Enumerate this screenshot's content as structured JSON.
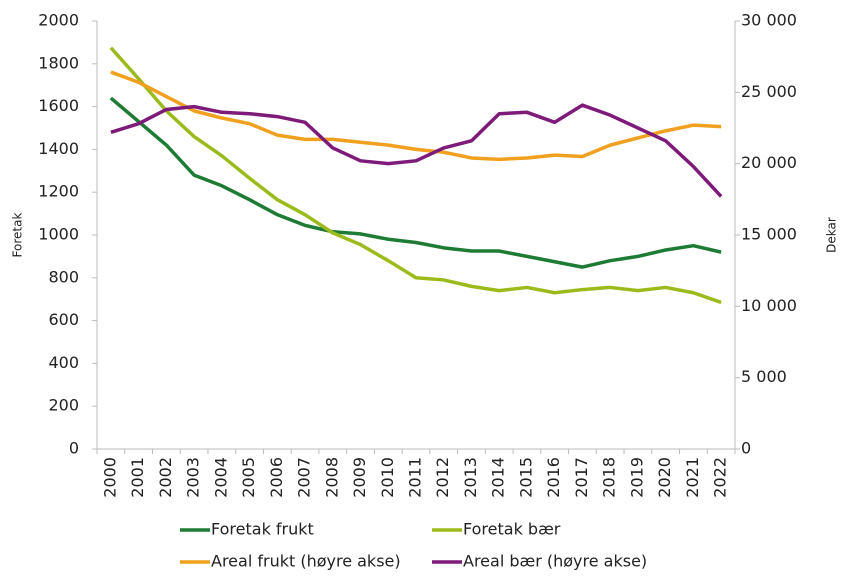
{
  "chart_data": {
    "type": "line",
    "categories": [
      "2000",
      "2001",
      "2002",
      "2003",
      "2004",
      "2005",
      "2006",
      "2007",
      "2008",
      "2009",
      "2010",
      "2011",
      "2012",
      "2013",
      "2014",
      "2015",
      "2016",
      "2017",
      "2018",
      "2019",
      "2020",
      "2021",
      "2022"
    ],
    "ylabel": "Foretak",
    "y2label": "Dekar",
    "ylim": [
      0,
      2000
    ],
    "yticks": [
      0,
      200,
      400,
      600,
      800,
      1000,
      1200,
      1400,
      1600,
      1800,
      2000
    ],
    "y2lim": [
      0,
      30000
    ],
    "y2ticks": [
      0,
      {
        "value": 5000,
        "label": "5 000"
      },
      {
        "value": 10000,
        "label": "10 000"
      },
      {
        "value": 15000,
        "label": "15 000"
      },
      {
        "value": 20000,
        "label": "20 000"
      },
      {
        "value": 25000,
        "label": "25 000"
      },
      {
        "value": 30000,
        "label": "30 000"
      }
    ],
    "grid": false,
    "legend": "bottom",
    "series": [
      {
        "name": "Foretak frukt",
        "color": "#1e7b34",
        "values": [
          1640,
          1530,
          1420,
          1280,
          1230,
          1165,
          1095,
          1045,
          1015,
          1005,
          980,
          965,
          940,
          925,
          925,
          900,
          875,
          850,
          880,
          900,
          930,
          950,
          920
        ]
      },
      {
        "name": "Foretak bær",
        "color": "#9bbb1c",
        "values": [
          1875,
          1730,
          1580,
          1460,
          1370,
          1265,
          1165,
          1095,
          1010,
          955,
          880,
          800,
          790,
          760,
          740,
          755,
          730,
          745,
          755,
          740,
          755,
          730,
          685
        ]
      },
      {
        "name": "Areal frukt (høyre akse)",
        "color": "#f0a01e",
        "axis": "y2",
        "values": [
          26420,
          25700,
          24700,
          23700,
          23200,
          22800,
          22000,
          21700,
          21700,
          21500,
          21300,
          21000,
          20800,
          20400,
          20300,
          20400,
          20600,
          20500,
          21300,
          21800,
          22300,
          22700,
          22600
        ]
      },
      {
        "name": "Areal bær (høyre akse)",
        "color": "#7d1a7a",
        "axis": "y2",
        "values": [
          22200,
          22800,
          23800,
          24000,
          23600,
          23500,
          23300,
          22900,
          21100,
          20200,
          20000,
          20200,
          21100,
          21600,
          23500,
          23600,
          22900,
          24100,
          23400,
          22500,
          21600,
          19800,
          17700
        ]
      }
    ]
  }
}
